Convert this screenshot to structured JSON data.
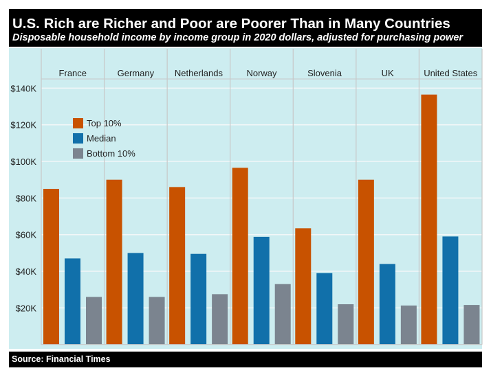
{
  "header": {
    "title": "U.S. Rich are Richer and Poor are Poorer Than in Many Countries",
    "subtitle": "Disposable household income by income group in 2020 dollars, adjusted for purchasing power"
  },
  "footer": {
    "source": "Source: Financial Times"
  },
  "chart_data": {
    "type": "bar",
    "title": "U.S. Rich are Richer and Poor are Poorer Than in Many Countries",
    "subtitle": "Disposable household income by income group in 2020 dollars, adjusted for purchasing power",
    "categories": [
      "France",
      "Germany",
      "Netherlands",
      "Norway",
      "Slovenia",
      "UK",
      "United States"
    ],
    "series": [
      {
        "name": "Top 10%",
        "color": "#c85200",
        "values": [
          85000,
          90000,
          86000,
          96500,
          63500,
          90000,
          136500
        ]
      },
      {
        "name": "Median",
        "color": "#1170aa",
        "values": [
          47000,
          50000,
          49500,
          58800,
          39000,
          44000,
          59000
        ]
      },
      {
        "name": "Bottom 10%",
        "color": "#7b848f",
        "values": [
          26000,
          26000,
          27500,
          33000,
          22000,
          21300,
          21600
        ]
      }
    ],
    "yticks": [
      20000,
      40000,
      60000,
      80000,
      100000,
      120000,
      140000
    ],
    "ytick_labels": [
      "$20K",
      "$40K",
      "$60K",
      "$80K",
      "$100K",
      "$120K",
      "$140K"
    ],
    "ylim": [
      0,
      140000
    ],
    "grid": true,
    "legend_position": "top-left",
    "background": "#cdedf0"
  }
}
